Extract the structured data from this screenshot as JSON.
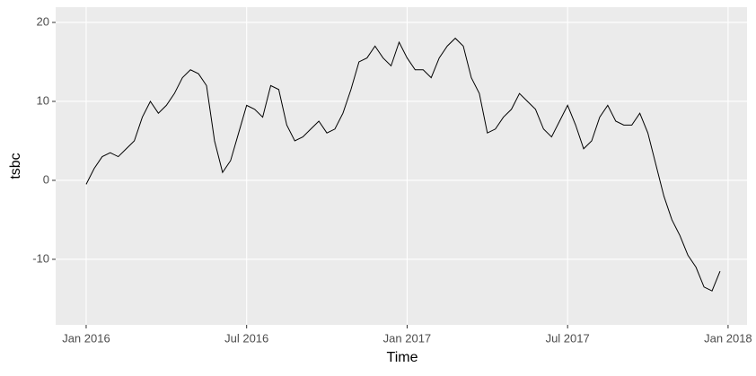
{
  "chart_data": {
    "type": "line",
    "x_label": "Time",
    "y_label": "tsbc",
    "x": [
      2016.0,
      2016.025,
      2016.05,
      2016.075,
      2016.1,
      2016.125,
      2016.15,
      2016.175,
      2016.2,
      2016.225,
      2016.25,
      2016.275,
      2016.3,
      2016.325,
      2016.35,
      2016.375,
      2016.4,
      2016.425,
      2016.45,
      2016.475,
      2016.5,
      2016.525,
      2016.55,
      2016.575,
      2016.6,
      2016.625,
      2016.65,
      2016.675,
      2016.7,
      2016.725,
      2016.75,
      2016.775,
      2016.8,
      2016.825,
      2016.85,
      2016.875,
      2016.9,
      2016.925,
      2016.95,
      2016.975,
      2017.0,
      2017.025,
      2017.05,
      2017.075,
      2017.1,
      2017.125,
      2017.15,
      2017.175,
      2017.2,
      2017.225,
      2017.25,
      2017.275,
      2017.3,
      2017.325,
      2017.35,
      2017.375,
      2017.4,
      2017.425,
      2017.45,
      2017.475,
      2017.5,
      2017.525,
      2017.55,
      2017.575,
      2017.6,
      2017.625,
      2017.65,
      2017.675,
      2017.7,
      2017.725,
      2017.75,
      2017.775,
      2017.8,
      2017.825,
      2017.85,
      2017.875,
      2017.9,
      2017.925,
      2017.95,
      2017.975
    ],
    "series": [
      {
        "color": "#000000",
        "values": [
          -0.5,
          1.5,
          3,
          3.5,
          3,
          4,
          5,
          8,
          10,
          8.5,
          9.5,
          11,
          13,
          14,
          13.5,
          12,
          5,
          1,
          2.5,
          6,
          9.5,
          9,
          8,
          12,
          11.5,
          7,
          5,
          5.5,
          6.5,
          7.5,
          6,
          6.5,
          8.5,
          11.5,
          15,
          15.5,
          17,
          15.5,
          14.5,
          17.5,
          15.5,
          14,
          14,
          13,
          15.5,
          17,
          18,
          17,
          13,
          11,
          6,
          6.5,
          8,
          9,
          11,
          10,
          9,
          6.5,
          5.5,
          7.5,
          9.5,
          7,
          4,
          5,
          8,
          9.5,
          7.5,
          7,
          7,
          8.5,
          6,
          2,
          -2,
          -5,
          -7,
          -9.5,
          -11,
          -13.5,
          -14,
          -11.5
        ]
      }
    ],
    "xlim": [
      2015.905,
      2018.059
    ],
    "ylim": [
      -18.3,
      21.93
    ],
    "xticks": [
      {
        "value": 2016,
        "label": "Jan 2016"
      },
      {
        "value": 2016.5,
        "label": "Jul 2016"
      },
      {
        "value": 2017,
        "label": "Jan 2017"
      },
      {
        "value": 2017.5,
        "label": "Jul 2017"
      },
      {
        "value": 2018,
        "label": "Jan 2018"
      }
    ],
    "yticks": [
      -10,
      0,
      10,
      20
    ],
    "grid": true
  }
}
